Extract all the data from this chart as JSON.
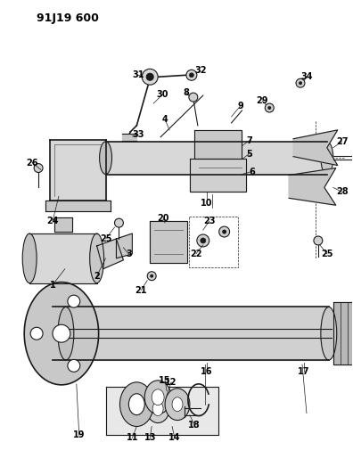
{
  "title": "91J19 600",
  "bg_color": "#ffffff",
  "fig_width": 3.96,
  "fig_height": 5.33,
  "dpi": 100
}
